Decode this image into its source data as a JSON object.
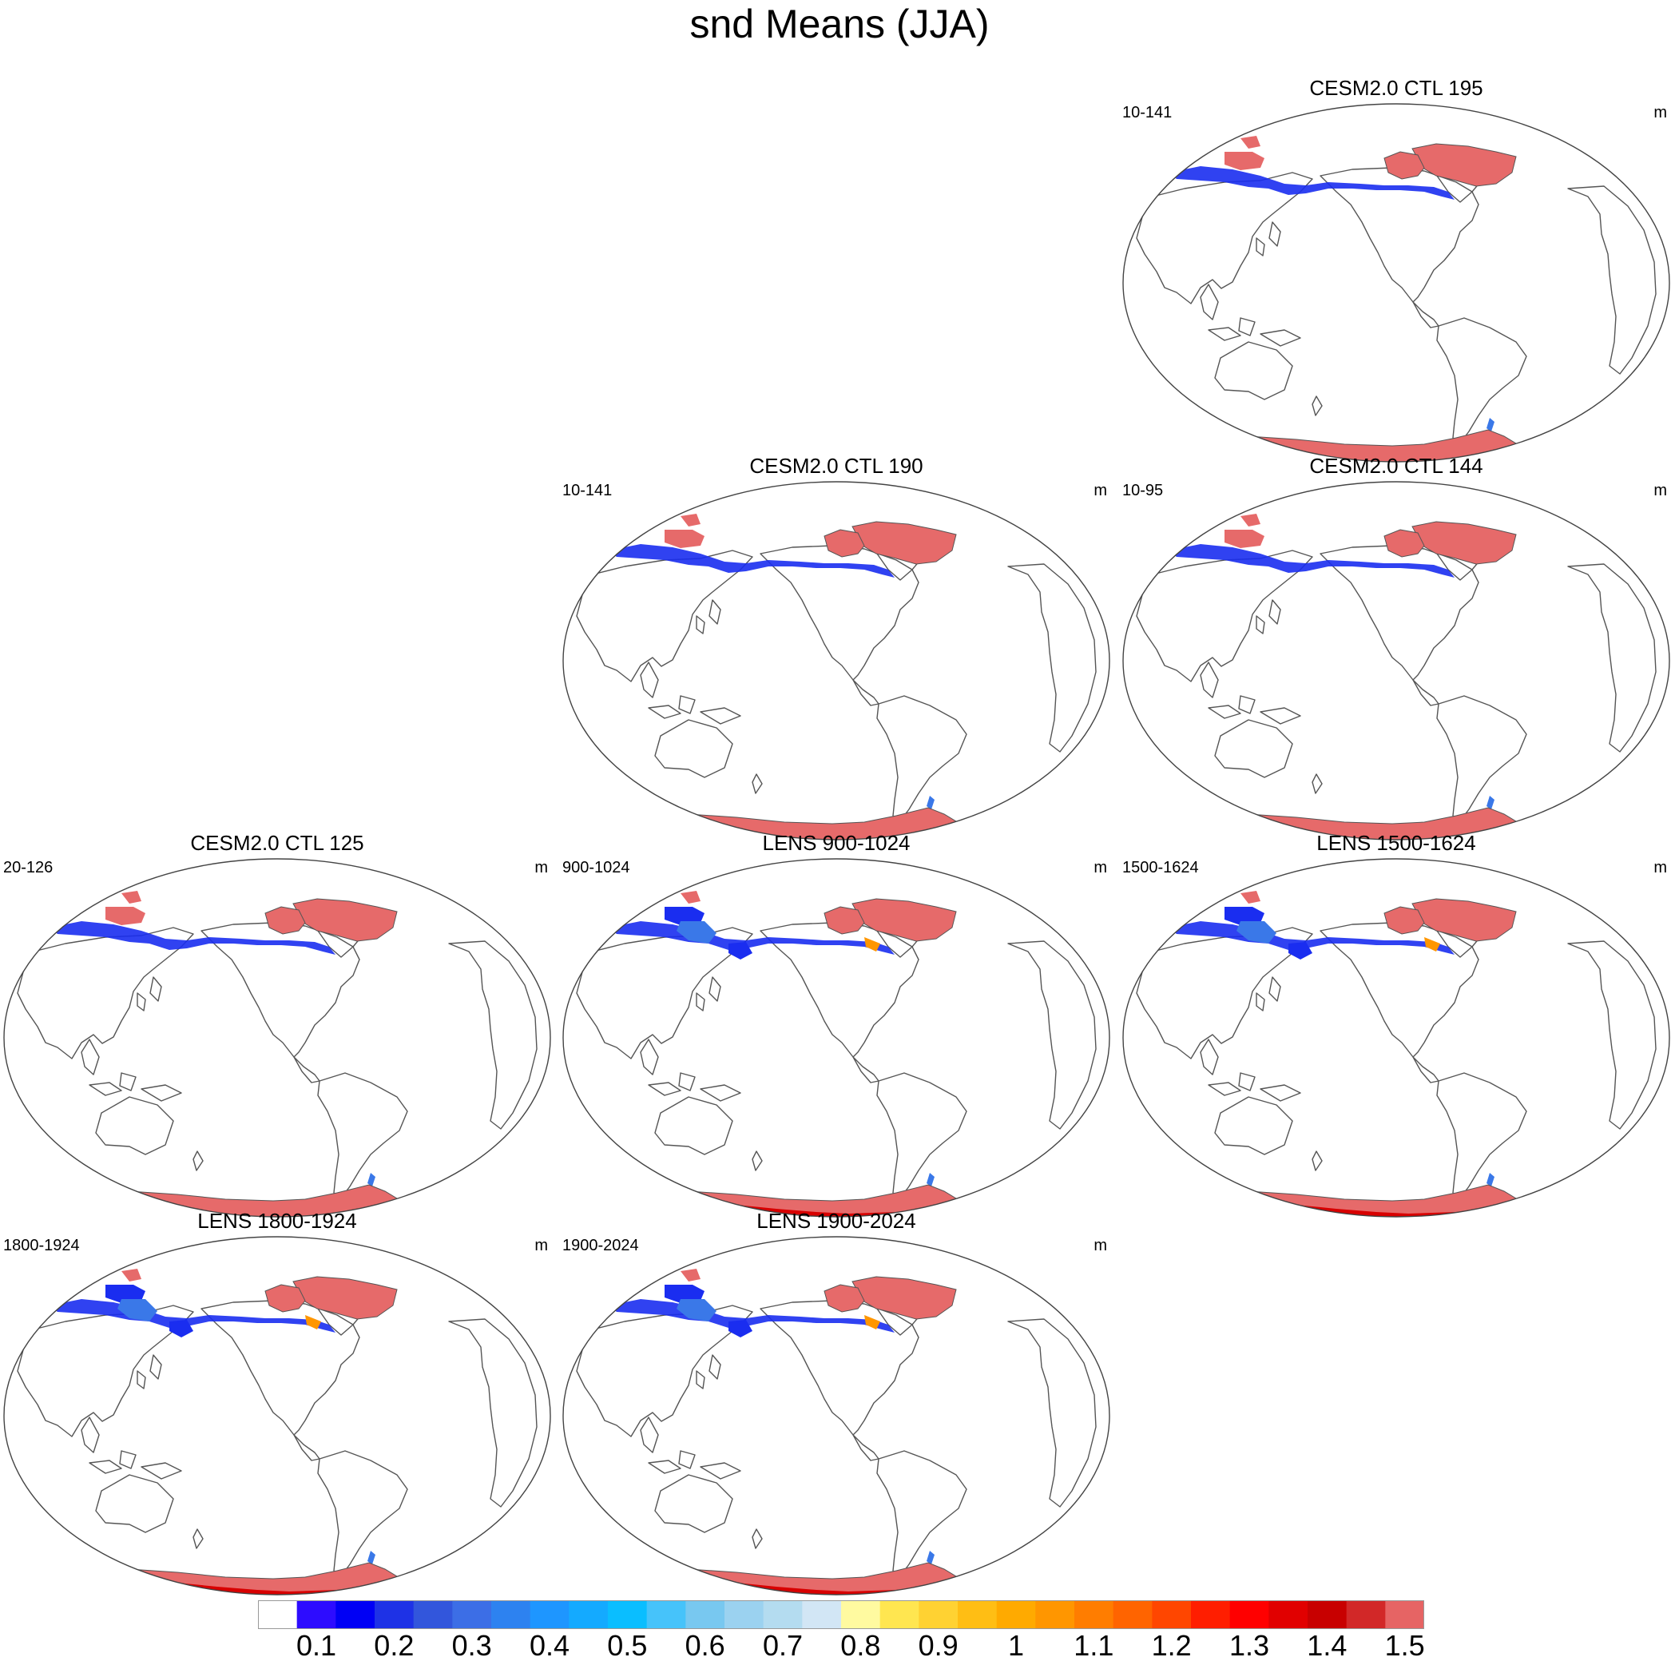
{
  "title": "snd Means (JJA)",
  "panels": [
    {
      "id": "ctl195",
      "title": "CESM2.0 CTL 195",
      "range": "10-141",
      "units": "m",
      "ice_level": "low",
      "n_snow_extra": false
    },
    {
      "id": "ctl190",
      "title": "CESM2.0 CTL 190",
      "range": "10-141",
      "units": "m",
      "ice_level": "low",
      "n_snow_extra": false
    },
    {
      "id": "ctl144",
      "title": "CESM2.0 CTL 144",
      "range": "10-95",
      "units": "m",
      "ice_level": "low",
      "n_snow_extra": false
    },
    {
      "id": "ctl125",
      "title": "CESM2.0 CTL 125",
      "range": "20-126",
      "units": "m",
      "ice_level": "low",
      "n_snow_extra": false
    },
    {
      "id": "lens900",
      "title": "LENS 900-1024",
      "range": "900-1024",
      "units": "m",
      "ice_level": "high",
      "n_snow_extra": true
    },
    {
      "id": "lens1500",
      "title": "LENS 1500-1624",
      "range": "1500-1624",
      "units": "m",
      "ice_level": "high",
      "n_snow_extra": true
    },
    {
      "id": "lens1800",
      "title": "LENS 1800-1924",
      "range": "1800-1924",
      "units": "m",
      "ice_level": "high",
      "n_snow_extra": true
    },
    {
      "id": "lens1900",
      "title": "LENS 1900-2024",
      "range": "1900-2024",
      "units": "m",
      "ice_level": "high",
      "n_snow_extra": true
    }
  ],
  "colorbar": {
    "labels": [
      "0.1",
      "0.2",
      "0.3",
      "0.4",
      "0.5",
      "0.6",
      "0.7",
      "0.8",
      "0.9",
      "1",
      "1.1",
      "1.2",
      "1.3",
      "1.4",
      "1.5"
    ],
    "colors": [
      "#ffffff",
      "#2d0cff",
      "#0000f5",
      "#1e32e6",
      "#3256dc",
      "#3c6ee6",
      "#2d82f0",
      "#1e96ff",
      "#14aaff",
      "#0abeff",
      "#46c3fa",
      "#78c8f0",
      "#9bd2f0",
      "#b4dcf0",
      "#d2e6f5",
      "#fffaa0",
      "#ffe650",
      "#ffd232",
      "#ffbe14",
      "#ffaa00",
      "#ff9600",
      "#ff7d00",
      "#ff6400",
      "#ff4600",
      "#ff1e00",
      "#ff0000",
      "#e10000",
      "#c80000",
      "#d22828",
      "#e66464"
    ]
  }
}
